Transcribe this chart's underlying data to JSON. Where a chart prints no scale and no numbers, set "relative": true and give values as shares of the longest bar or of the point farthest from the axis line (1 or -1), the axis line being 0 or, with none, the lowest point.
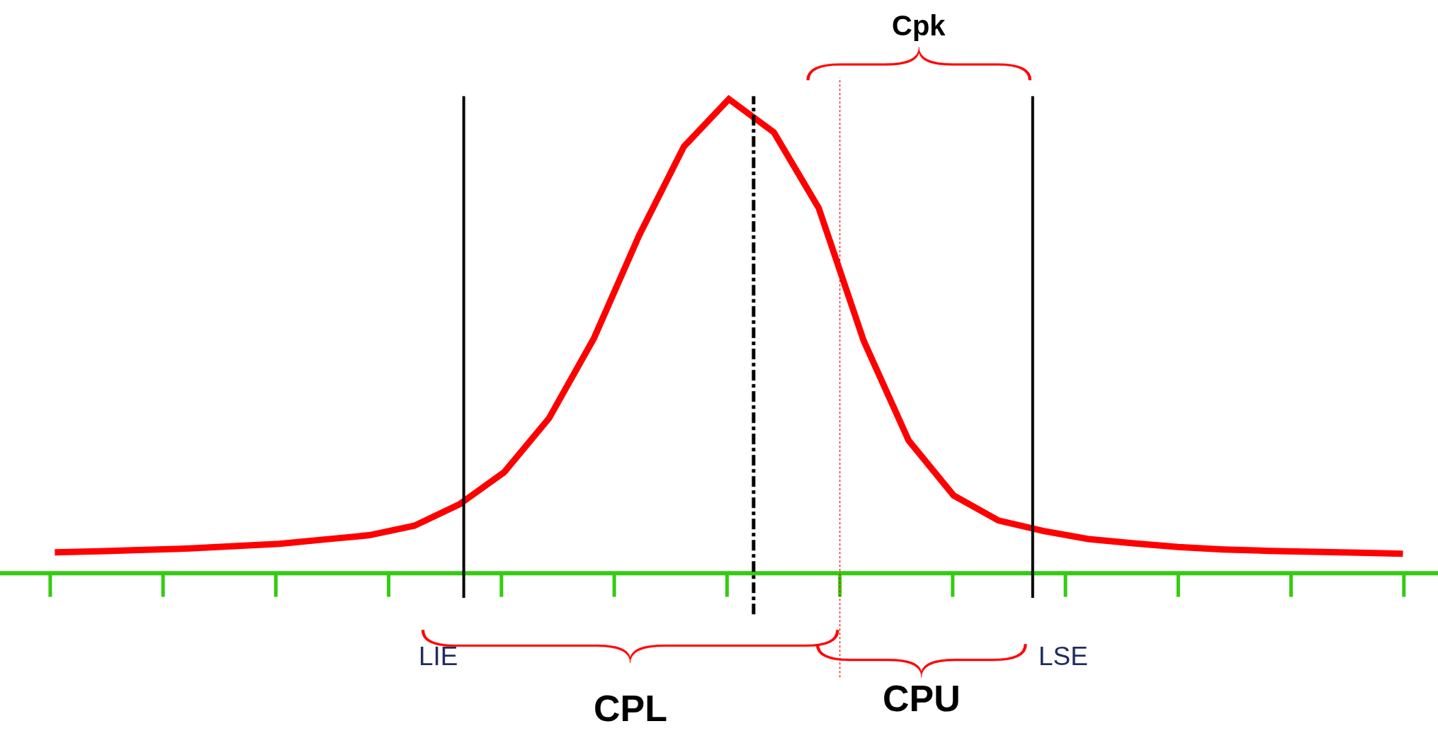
{
  "chart_data": {
    "type": "line",
    "relative": true,
    "categories": [
      null,
      null,
      null,
      null,
      null,
      null,
      null,
      null,
      null,
      null,
      null,
      null,
      null,
      null,
      null,
      null,
      null,
      null,
      null,
      null,
      null,
      null,
      null,
      null,
      null,
      null,
      null,
      null,
      null,
      null,
      null
    ],
    "series": [
      {
        "color": "#ff0000",
        "values": [
          0.044,
          0.046,
          0.049,
          0.052,
          0.057,
          0.062,
          0.071,
          0.08,
          0.1,
          0.145,
          0.213,
          0.327,
          0.496,
          0.712,
          0.9,
          1.0,
          0.93,
          0.77,
          0.49,
          0.28,
          0.164,
          0.111,
          0.089,
          0.072,
          0.063,
          0.055,
          0.05,
          0.047,
          0.045,
          0.043,
          0.041
        ]
      }
    ],
    "marker": "none",
    "line_style": "solid",
    "ref_lines": [
      {
        "axis": "x",
        "label": "LIE",
        "color": "#000000",
        "line_style": "solid"
      },
      {
        "axis": "x",
        "label": null,
        "color": "#000000",
        "line_style": "dashdot"
      },
      {
        "axis": "x",
        "label": null,
        "color": "#ff0000",
        "line_style": "dotted"
      },
      {
        "axis": "x",
        "label": "LSE",
        "color": "#000000",
        "line_style": "solid"
      }
    ],
    "annotations": [
      "CPL",
      "CPU",
      "Cpk"
    ]
  }
}
